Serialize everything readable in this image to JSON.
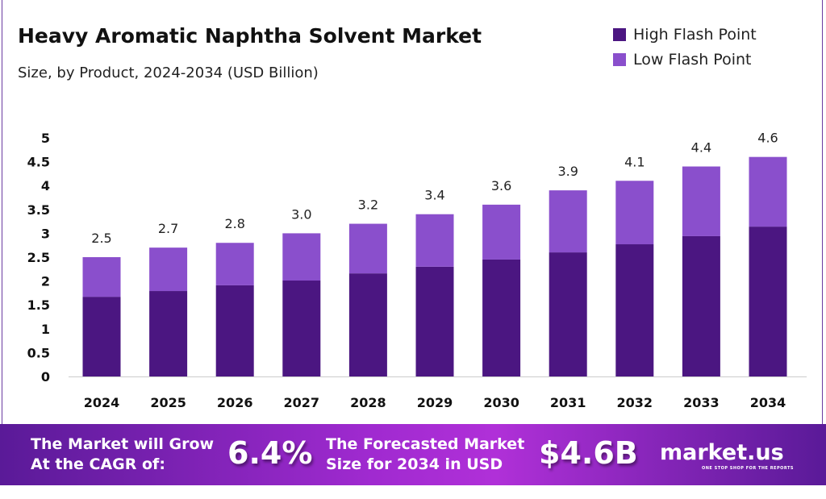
{
  "chart_data": {
    "type": "bar",
    "stacked": true,
    "title": "Heavy Aromatic Naphtha Solvent Market",
    "subtitle": "Size, by Product, 2024-2034 (USD Billion)",
    "categories": [
      "2024",
      "2025",
      "2026",
      "2027",
      "2028",
      "2029",
      "2030",
      "2031",
      "2032",
      "2033",
      "2034"
    ],
    "series": [
      {
        "name": "High Flash Point",
        "color": "#4b1681",
        "values": [
          1.67,
          1.79,
          1.91,
          2.01,
          2.16,
          2.3,
          2.45,
          2.6,
          2.77,
          2.94,
          3.14
        ]
      },
      {
        "name": "Low Flash Point",
        "color": "#8a4fcc",
        "values": [
          0.83,
          0.91,
          0.89,
          0.99,
          1.04,
          1.1,
          1.15,
          1.3,
          1.33,
          1.46,
          1.46
        ]
      }
    ],
    "totals": [
      "2.5",
      "2.7",
      "2.8",
      "3.0",
      "3.2",
      "3.4",
      "3.6",
      "3.9",
      "4.1",
      "4.4",
      "4.6"
    ],
    "yticks": [
      "0",
      "0.5",
      "1",
      "1.5",
      "2",
      "2.5",
      "3",
      "3.5",
      "4",
      "4.5",
      "5"
    ],
    "ylim": [
      0,
      5
    ],
    "grid": false,
    "legend": "top-right"
  },
  "banner": {
    "cagr_text_1": "The Market will Grow",
    "cagr_text_2": "At the CAGR of:",
    "cagr": "6.4%",
    "forecast_text_1": "The Forecasted Market",
    "forecast_text_2": "Size for 2034 in USD",
    "forecast": "$4.6B",
    "logo": "market.us",
    "tagline": "ONE STOP SHOP FOR THE REPORTS"
  }
}
